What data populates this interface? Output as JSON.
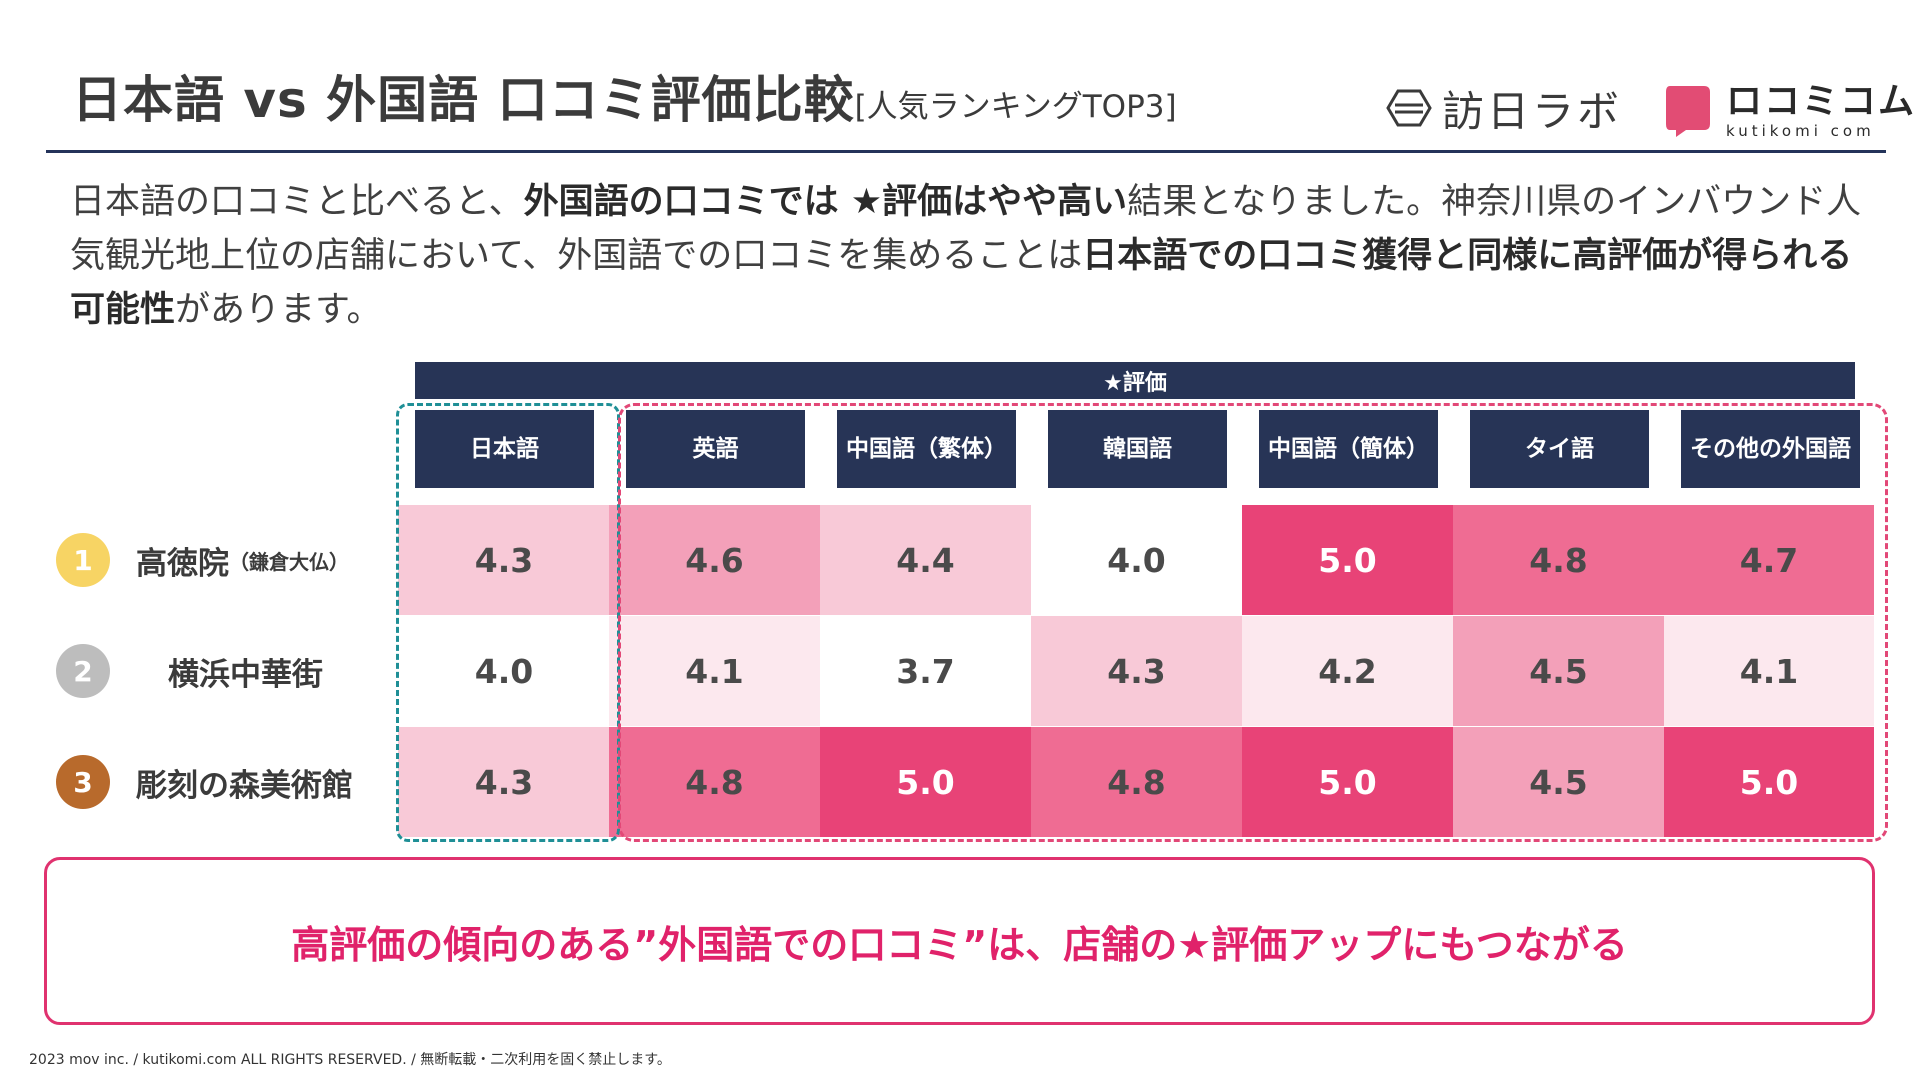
{
  "header": {
    "title": "日本語 vs 外国語 口コミ評価比較",
    "title_sub": "[人気ランキングTOP3]",
    "logo_houmon": "訪日ラボ",
    "logo_kutikomi_main": "ロコミコム",
    "logo_kutikomi_sub": "kutikomi com"
  },
  "intro": {
    "p1": "日本語の口コミと比べると、",
    "b1": "外国語の口コミでは ★評価はやや高い",
    "p2": "結果となりました。神奈川県のインバウンド人気観光地上位の店舗において、外国語での口コミを集めることは",
    "b2": "日本語での口コミ獲得と同様に高評価が得られる可能性",
    "p3": "があります。"
  },
  "table": {
    "star_header": "★評価",
    "columns": [
      {
        "line1": "日本語",
        "line2": ""
      },
      {
        "line1": "英語",
        "line2": ""
      },
      {
        "line1": "中国語",
        "line2": "（繁体）"
      },
      {
        "line1": "韓国語",
        "line2": ""
      },
      {
        "line1": "中国語",
        "line2": "（簡体）"
      },
      {
        "line1": "タイ語",
        "line2": ""
      },
      {
        "line1": "その他の",
        "line2": "外国語"
      }
    ],
    "rows": [
      {
        "rank": "1",
        "name": "高徳院",
        "note": "（鎌倉大仏）",
        "values": [
          "4.3",
          "4.6",
          "4.4",
          "4.0",
          "5.0",
          "4.8",
          "4.7"
        ]
      },
      {
        "rank": "2",
        "name": "横浜中華街",
        "note": "",
        "values": [
          "4.0",
          "4.1",
          "3.7",
          "4.3",
          "4.2",
          "4.5",
          "4.1"
        ]
      },
      {
        "rank": "3",
        "name": "彫刻の森美術館",
        "note": "",
        "values": [
          "4.3",
          "4.8",
          "5.0",
          "4.8",
          "5.0",
          "4.5",
          "5.0"
        ]
      }
    ]
  },
  "colors": {
    "navy": "#273456",
    "rank_gold": "#f7d464",
    "rank_silver": "#bdbdbd",
    "rank_bronze": "#b86a2c",
    "accent": "#e0226a"
  },
  "conclusion": "高評価の傾向のある”外国語での口コミ”は、店舗の★評価アップにもつながる",
  "footer": "2023 mov inc. / kutikomi.com ALL RIGHTS RESERVED. / 無断転載・二次利用を固く禁止します。"
}
